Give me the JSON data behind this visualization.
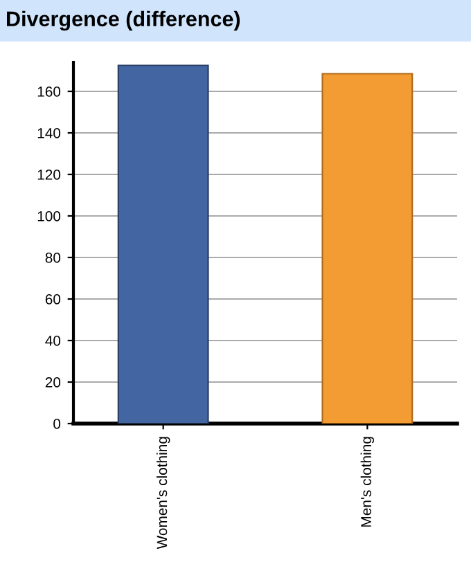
{
  "chart_data": {
    "type": "bar",
    "title": "Divergence (difference)",
    "categories": [
      "Women's clothing",
      "Men's clothing"
    ],
    "values": [
      172.5,
      168.5
    ],
    "colors": [
      "#4366a3",
      "#f39c34"
    ],
    "ylim": [
      0,
      174
    ],
    "yticks": [
      0,
      20,
      40,
      60,
      80,
      100,
      120,
      140,
      160
    ],
    "grid": "y",
    "legend": false
  }
}
